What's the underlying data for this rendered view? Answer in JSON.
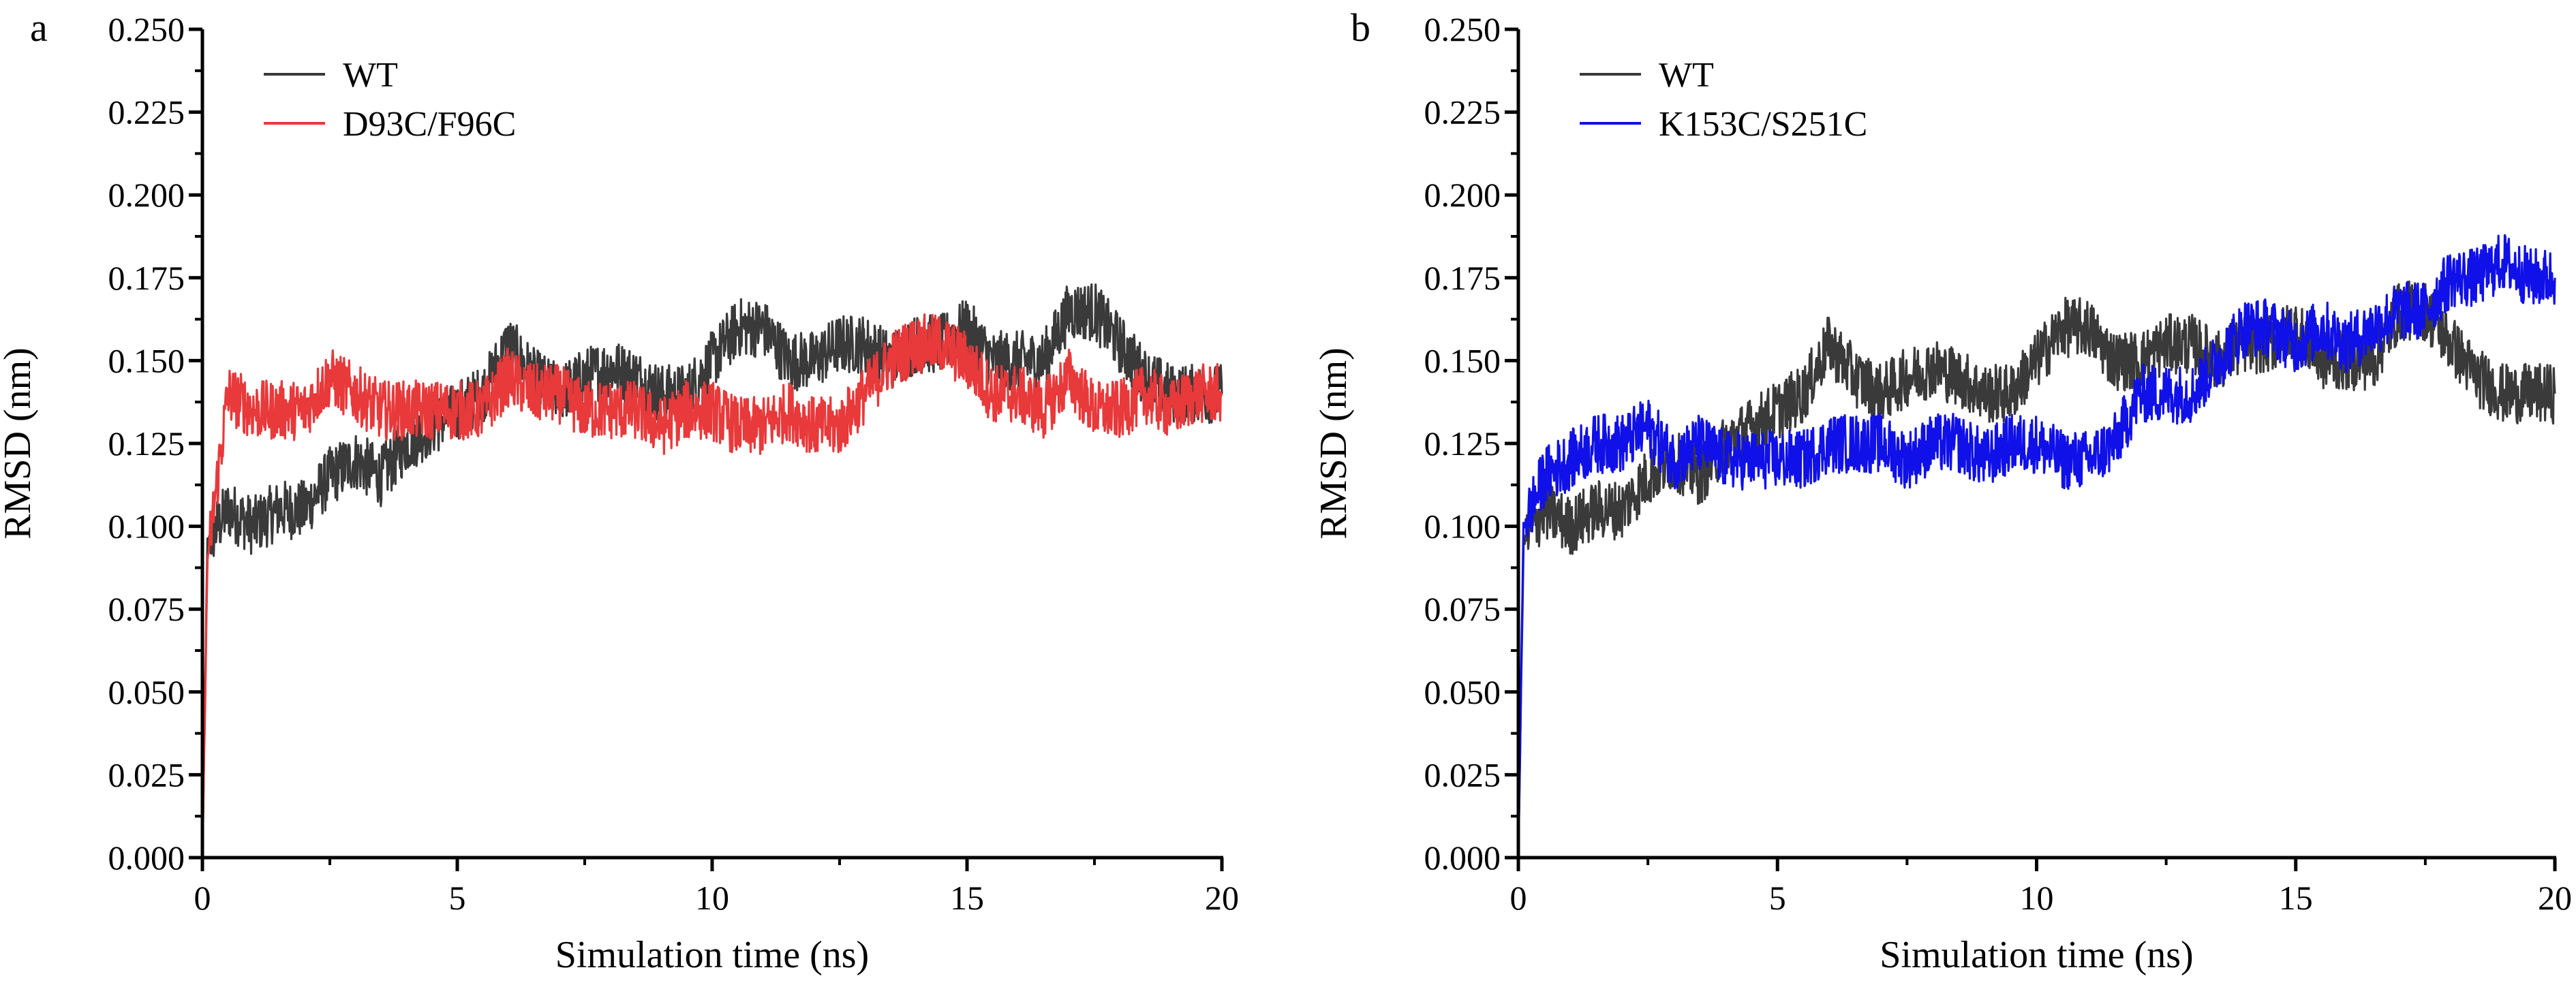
{
  "chart_data": [
    {
      "panel_label": "a",
      "type": "line",
      "xlabel": "Simulation time (ns)",
      "ylabel": "RMSD (nm)",
      "xlim": [
        0,
        20
      ],
      "ylim": [
        0,
        0.25
      ],
      "xticks": [
        "0",
        "5",
        "10",
        "15",
        "20"
      ],
      "yticks": [
        "0.000",
        "0.025",
        "0.050",
        "0.075",
        "0.100",
        "0.125",
        "0.150",
        "0.175",
        "0.200",
        "0.225",
        "0.250"
      ],
      "grid": false,
      "legend": "top-left",
      "series": [
        {
          "name": "WT",
          "color": "#3a3a3a",
          "x": [
            0,
            0.1,
            0.5,
            1,
            1.5,
            2,
            2.5,
            3,
            3.5,
            4,
            4.5,
            5,
            5.5,
            6,
            6.5,
            7,
            7.5,
            8,
            8.5,
            9,
            9.5,
            10,
            10.5,
            11,
            11.5,
            12,
            12.5,
            13,
            13.5,
            14,
            14.5,
            15,
            15.5,
            16,
            16.5,
            17,
            17.5,
            18,
            18.5,
            19,
            19.5,
            20
          ],
          "y": [
            0,
            0.095,
            0.105,
            0.1,
            0.105,
            0.105,
            0.115,
            0.12,
            0.115,
            0.125,
            0.13,
            0.135,
            0.14,
            0.155,
            0.145,
            0.14,
            0.145,
            0.148,
            0.145,
            0.14,
            0.14,
            0.15,
            0.16,
            0.16,
            0.15,
            0.15,
            0.155,
            0.155,
            0.15,
            0.155,
            0.155,
            0.16,
            0.15,
            0.15,
            0.15,
            0.165,
            0.165,
            0.155,
            0.145,
            0.14,
            0.14,
            0.14
          ]
        },
        {
          "name": "D93C/F96C",
          "color": "#e8393b",
          "x": [
            0,
            0.1,
            0.3,
            0.5,
            1,
            1.5,
            2,
            2.5,
            3,
            3.5,
            4,
            4.5,
            5,
            5.5,
            6,
            6.5,
            7,
            7.5,
            8,
            8.5,
            9,
            9.5,
            10,
            10.5,
            11,
            11.5,
            12,
            12.5,
            13,
            13.5,
            14,
            14.5,
            15,
            15.5,
            16,
            16.5,
            17,
            17.5,
            18,
            18.5,
            19,
            19.5,
            20
          ],
          "y": [
            0,
            0.09,
            0.115,
            0.14,
            0.135,
            0.135,
            0.135,
            0.145,
            0.14,
            0.135,
            0.135,
            0.135,
            0.135,
            0.135,
            0.145,
            0.14,
            0.14,
            0.135,
            0.135,
            0.135,
            0.13,
            0.135,
            0.135,
            0.13,
            0.13,
            0.135,
            0.13,
            0.13,
            0.14,
            0.15,
            0.155,
            0.155,
            0.15,
            0.14,
            0.14,
            0.135,
            0.145,
            0.135,
            0.135,
            0.14,
            0.135,
            0.14,
            0.14
          ]
        }
      ]
    },
    {
      "panel_label": "b",
      "type": "line",
      "xlabel": "Simulation time (ns)",
      "ylabel": "RMSD (nm)",
      "xlim": [
        0,
        20
      ],
      "ylim": [
        0,
        0.25
      ],
      "xticks": [
        "0",
        "5",
        "10",
        "15",
        "20"
      ],
      "yticks": [
        "0.000",
        "0.025",
        "0.050",
        "0.075",
        "0.100",
        "0.125",
        "0.150",
        "0.175",
        "0.200",
        "0.225",
        "0.250"
      ],
      "grid": false,
      "legend": "top-left",
      "series": [
        {
          "name": "WT",
          "color": "#3a3a3a",
          "x": [
            0,
            0.1,
            0.5,
            1,
            1.5,
            2,
            2.5,
            3,
            3.5,
            4,
            4.5,
            5,
            5.5,
            6,
            6.5,
            7,
            7.5,
            8,
            8.5,
            9,
            9.5,
            10,
            10.5,
            11,
            11.5,
            12,
            12.5,
            13,
            13.5,
            14,
            14.5,
            15,
            15.5,
            16,
            16.5,
            17,
            17.5,
            18,
            18.5,
            19,
            19.5,
            20
          ],
          "y": [
            0,
            0.095,
            0.105,
            0.1,
            0.105,
            0.105,
            0.115,
            0.12,
            0.115,
            0.125,
            0.13,
            0.135,
            0.14,
            0.155,
            0.145,
            0.14,
            0.145,
            0.148,
            0.145,
            0.14,
            0.14,
            0.15,
            0.16,
            0.16,
            0.15,
            0.15,
            0.155,
            0.155,
            0.15,
            0.155,
            0.155,
            0.16,
            0.15,
            0.15,
            0.15,
            0.165,
            0.165,
            0.155,
            0.145,
            0.14,
            0.14,
            0.14
          ]
        },
        {
          "name": "K153C/S251C",
          "color": "#1010e8",
          "x": [
            0,
            0.1,
            0.5,
            1,
            1.5,
            2,
            2.5,
            3,
            3.5,
            4,
            4.5,
            5,
            5.5,
            6,
            6.5,
            7,
            7.5,
            8,
            8.5,
            9,
            9.5,
            10,
            10.5,
            11,
            11.5,
            12,
            12.5,
            13,
            13.5,
            14,
            14.5,
            15,
            15.5,
            16,
            16.5,
            17,
            17.5,
            18,
            18.5,
            19,
            19.5,
            20
          ],
          "y": [
            0,
            0.1,
            0.115,
            0.12,
            0.125,
            0.125,
            0.13,
            0.12,
            0.125,
            0.12,
            0.12,
            0.12,
            0.12,
            0.125,
            0.125,
            0.125,
            0.12,
            0.125,
            0.125,
            0.12,
            0.125,
            0.125,
            0.12,
            0.12,
            0.125,
            0.14,
            0.14,
            0.14,
            0.15,
            0.16,
            0.16,
            0.155,
            0.16,
            0.155,
            0.16,
            0.165,
            0.165,
            0.175,
            0.175,
            0.18,
            0.175,
            0.175
          ]
        }
      ]
    }
  ]
}
